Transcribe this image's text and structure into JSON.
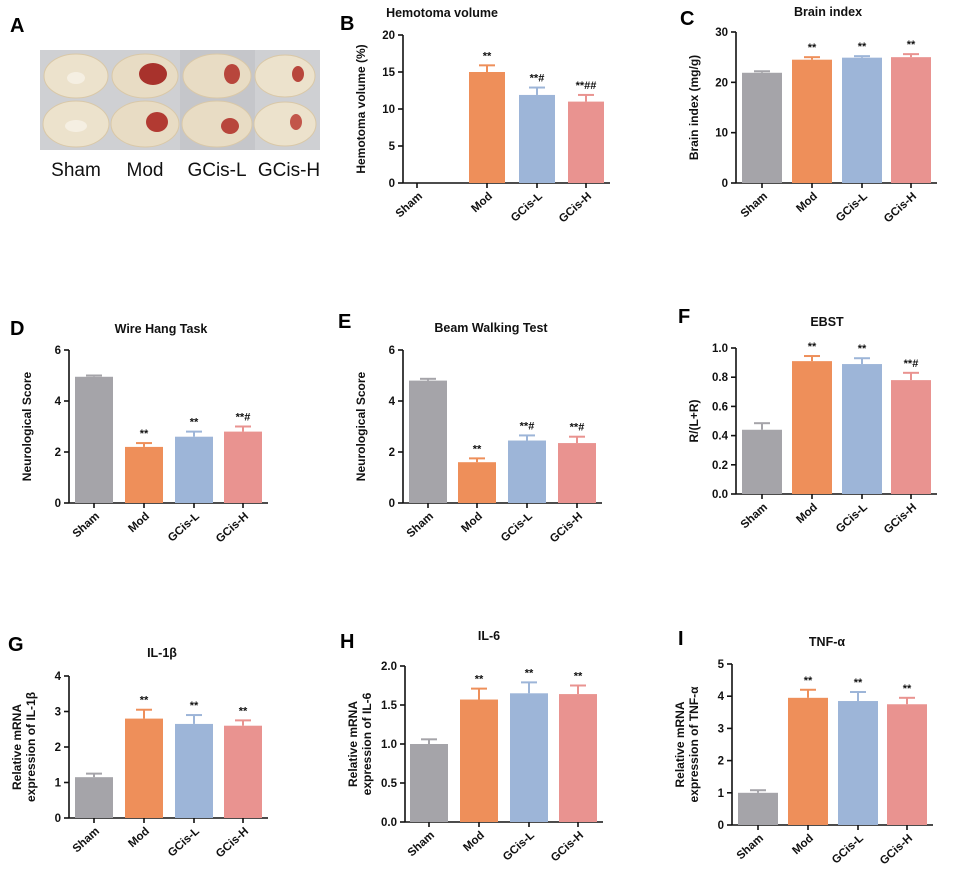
{
  "panel_a": {
    "letter": "A",
    "groups": [
      "Sham",
      "Mod",
      "GCis-L",
      "GCis-H"
    ]
  },
  "chart_data": [
    {
      "id": "B",
      "letter": "B",
      "type": "bar",
      "title": "Hemotoma volume",
      "xlabel": "",
      "ylabel": "Hemotoma volume (%)",
      "categories": [
        "Sham",
        "Mod",
        "GCis-L",
        "GCis-H"
      ],
      "values": [
        0,
        15,
        11.9,
        11
      ],
      "errors": [
        0,
        0.9,
        1.0,
        0.9
      ],
      "sig": [
        "",
        "**",
        "**#",
        "**##"
      ],
      "ylim": [
        0,
        20
      ],
      "yticks": [
        "0",
        "5",
        "10",
        "15",
        "20"
      ],
      "ytick_values": [
        0,
        5,
        10,
        15,
        20
      ]
    },
    {
      "id": "C",
      "letter": "C",
      "type": "bar",
      "title": "Brain index",
      "xlabel": "",
      "ylabel": "Brain index (mg/g)",
      "categories": [
        "Sham",
        "Mod",
        "GCis-L",
        "GCis-H"
      ],
      "values": [
        21.9,
        24.5,
        24.9,
        25.0
      ],
      "errors": [
        0.3,
        0.5,
        0.3,
        0.6
      ],
      "sig": [
        "",
        "**",
        "**",
        "**"
      ],
      "ylim": [
        0,
        30
      ],
      "yticks": [
        "0",
        "10",
        "20",
        "30"
      ],
      "ytick_values": [
        0,
        10,
        20,
        30
      ]
    },
    {
      "id": "D",
      "letter": "D",
      "type": "bar",
      "title": "Wire Hang Task",
      "xlabel": "",
      "ylabel": "Neurological Score",
      "categories": [
        "Sham",
        "Mod",
        "GCis-L",
        "GCis-H"
      ],
      "values": [
        4.95,
        2.2,
        2.6,
        2.8
      ],
      "errors": [
        0.05,
        0.15,
        0.2,
        0.2
      ],
      "sig": [
        "",
        "**",
        "**",
        "**#"
      ],
      "ylim": [
        0,
        6
      ],
      "yticks": [
        "0",
        "2",
        "4",
        "6"
      ],
      "ytick_values": [
        0,
        2,
        4,
        6
      ]
    },
    {
      "id": "E",
      "letter": "E",
      "type": "bar",
      "title": "Beam Walking Test",
      "xlabel": "",
      "ylabel": "Neurological Score",
      "categories": [
        "Sham",
        "Mod",
        "GCis-L",
        "GCis-H"
      ],
      "values": [
        4.8,
        1.6,
        2.45,
        2.35
      ],
      "errors": [
        0.07,
        0.15,
        0.2,
        0.25
      ],
      "sig": [
        "",
        "**",
        "**#",
        "**#"
      ],
      "ylim": [
        0,
        6
      ],
      "yticks": [
        "0",
        "2",
        "4",
        "6"
      ],
      "ytick_values": [
        0,
        2,
        4,
        6
      ]
    },
    {
      "id": "F",
      "letter": "F",
      "type": "bar",
      "title": "EBST",
      "xlabel": "",
      "ylabel": "R/(L+R)",
      "categories": [
        "Sham",
        "Mod",
        "GCis-L",
        "GCis-H"
      ],
      "values": [
        0.44,
        0.91,
        0.89,
        0.78
      ],
      "errors": [
        0.045,
        0.035,
        0.04,
        0.05
      ],
      "sig": [
        "",
        "**",
        "**",
        "**#"
      ],
      "ylim": [
        0,
        1.0
      ],
      "yticks": [
        "0.0",
        "0.2",
        "0.4",
        "0.6",
        "0.8",
        "1.0"
      ],
      "ytick_values": [
        0,
        0.2,
        0.4,
        0.6,
        0.8,
        1.0
      ]
    },
    {
      "id": "G",
      "letter": "G",
      "type": "bar",
      "title": "IL-1β",
      "xlabel": "",
      "ylabel": "Relative mRNA expression of IL-1β",
      "ylabel_lines": [
        "Relative mRNA",
        "expression of IL-1β"
      ],
      "categories": [
        "Sham",
        "Mod",
        "GCis-L",
        "GCis-H"
      ],
      "values": [
        1.15,
        2.8,
        2.65,
        2.6
      ],
      "errors": [
        0.1,
        0.25,
        0.25,
        0.15
      ],
      "sig": [
        "",
        "**",
        "**",
        "**"
      ],
      "ylim": [
        0,
        4
      ],
      "yticks": [
        "0",
        "1",
        "2",
        "3",
        "4"
      ],
      "ytick_values": [
        0,
        1,
        2,
        3,
        4
      ]
    },
    {
      "id": "H",
      "letter": "H",
      "type": "bar",
      "title": "IL-6",
      "xlabel": "",
      "ylabel": "Relative mRNA expression of IL-6",
      "ylabel_lines": [
        "Relative mRNA",
        "expression of IL-6"
      ],
      "categories": [
        "Sham",
        "Mod",
        "GCis-L",
        "GCis-H"
      ],
      "values": [
        1.0,
        1.57,
        1.65,
        1.64
      ],
      "errors": [
        0.06,
        0.14,
        0.14,
        0.11
      ],
      "sig": [
        "",
        "**",
        "**",
        "**"
      ],
      "ylim": [
        0,
        2.0
      ],
      "yticks": [
        "0.0",
        "0.5",
        "1.0",
        "1.5",
        "2.0"
      ],
      "ytick_values": [
        0,
        0.5,
        1.0,
        1.5,
        2.0
      ]
    },
    {
      "id": "I",
      "letter": "I",
      "type": "bar",
      "title": "TNF-α",
      "xlabel": "",
      "ylabel": "Relative mRNA expression of TNF-α",
      "ylabel_lines": [
        "Relative mRNA",
        "expression of TNF-α"
      ],
      "categories": [
        "Sham",
        "Mod",
        "GCis-L",
        "GCis-H"
      ],
      "values": [
        1.0,
        3.95,
        3.85,
        3.75
      ],
      "errors": [
        0.08,
        0.25,
        0.28,
        0.2
      ],
      "sig": [
        "",
        "**",
        "**",
        "**"
      ],
      "ylim": [
        0,
        5
      ],
      "yticks": [
        "0",
        "1",
        "2",
        "3",
        "4",
        "5"
      ],
      "ytick_values": [
        0,
        1,
        2,
        3,
        4,
        5
      ]
    }
  ],
  "colors": {
    "bars": [
      "#a5a4a9",
      "#ee8f5a",
      "#9db5d8",
      "#e99390"
    ],
    "axis": "#111111",
    "tissue": "#e8dcc4",
    "lesion": "#b23a32"
  }
}
